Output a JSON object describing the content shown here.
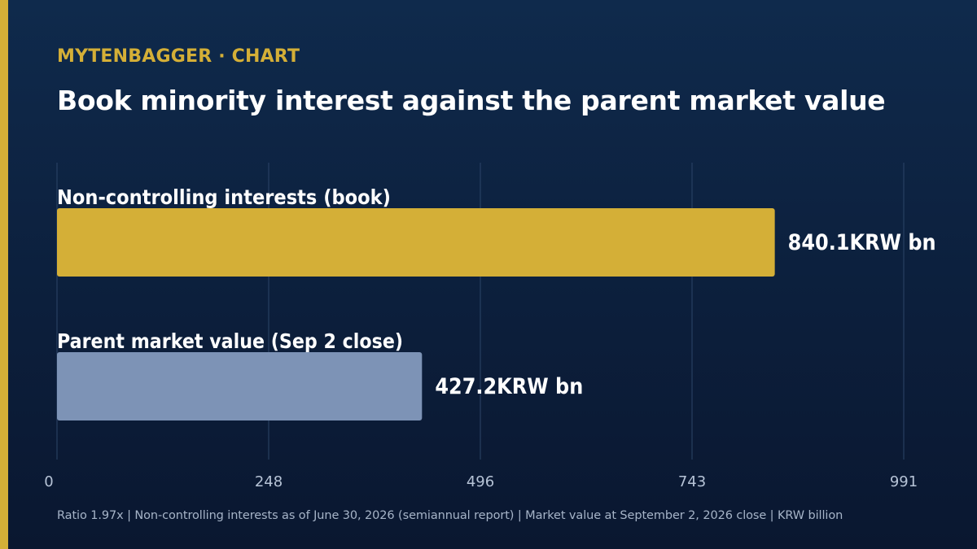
{
  "header": {
    "brand": "MYTENBAGGER · CHART",
    "title": "Book minority interest against the parent market value"
  },
  "colors": {
    "accent": "#d4af37",
    "secondary_bar": "#7d93b6",
    "gridline": "#2c4568",
    "tick_text": "#b6c3d6"
  },
  "chart_data": {
    "type": "bar",
    "orientation": "horizontal",
    "categories": [
      "Non-controlling interests (book)",
      "Parent market value (Sep 2 close)"
    ],
    "values": [
      840.1,
      427.2
    ],
    "value_labels": [
      "840.1KRW bn",
      "427.2KRW bn"
    ],
    "xlim": [
      0,
      991
    ],
    "xticks": [
      "0",
      "248",
      "496",
      "743",
      "991"
    ],
    "grid": true
  },
  "footer": {
    "note": "Ratio 1.97x | Non-controlling interests as of June 30, 2026 (semiannual report) | Market value at September 2, 2026 close | KRW billion"
  }
}
